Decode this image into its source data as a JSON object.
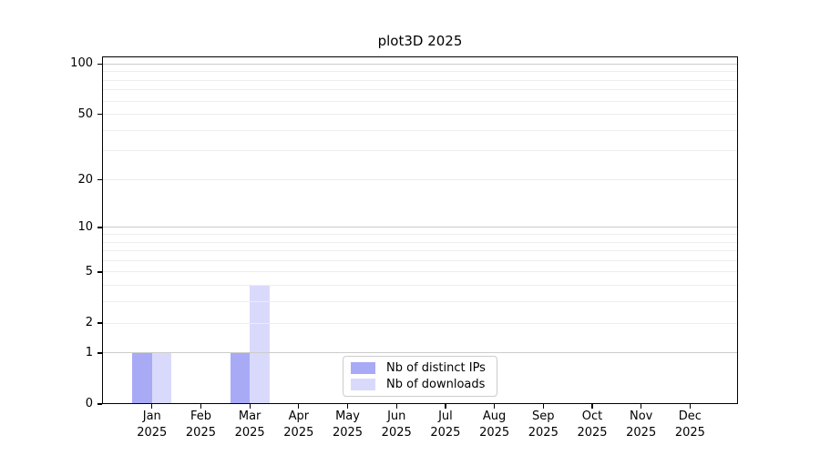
{
  "chart_data": {
    "type": "bar",
    "title": "plot3D 2025",
    "categories": [
      "Jan",
      "Feb",
      "Mar",
      "Apr",
      "May",
      "Jun",
      "Jul",
      "Aug",
      "Sep",
      "Oct",
      "Nov",
      "Dec"
    ],
    "category_sublabel": "2025",
    "series": [
      {
        "name": "Nb of distinct IPs",
        "color": "#a8aaf6",
        "values": [
          1,
          0,
          1,
          0,
          0,
          0,
          0,
          0,
          0,
          0,
          0,
          0
        ]
      },
      {
        "name": "Nb of downloads",
        "color": "#d9dafb",
        "values": [
          1,
          0,
          4,
          0,
          0,
          0,
          0,
          0,
          0,
          0,
          0,
          0
        ]
      }
    ],
    "y_axis": {
      "scale": "log10(1+x)",
      "ticks": [
        0,
        1,
        2,
        5,
        10,
        20,
        50,
        100
      ],
      "tick_labels": [
        "0",
        "1",
        "2",
        "5",
        "10",
        "20",
        "50",
        "100"
      ],
      "display_max": 111,
      "gridlines_major": [
        1,
        10,
        100
      ],
      "gridlines_minor": [
        2,
        3,
        4,
        5,
        6,
        7,
        8,
        9,
        20,
        30,
        40,
        50,
        60,
        70,
        80,
        90
      ]
    },
    "legend": {
      "position": "inside-bottom-center"
    },
    "colors": {
      "bar_distinct_ips": "#a8aaf6",
      "bar_downloads": "#d9dafb",
      "grid_major": "#cccccc",
      "grid_minor": "#ededed",
      "spine": "#000000",
      "text": "#000000",
      "legend_border": "#cccccc",
      "legend_bg": "#ffffff"
    }
  }
}
